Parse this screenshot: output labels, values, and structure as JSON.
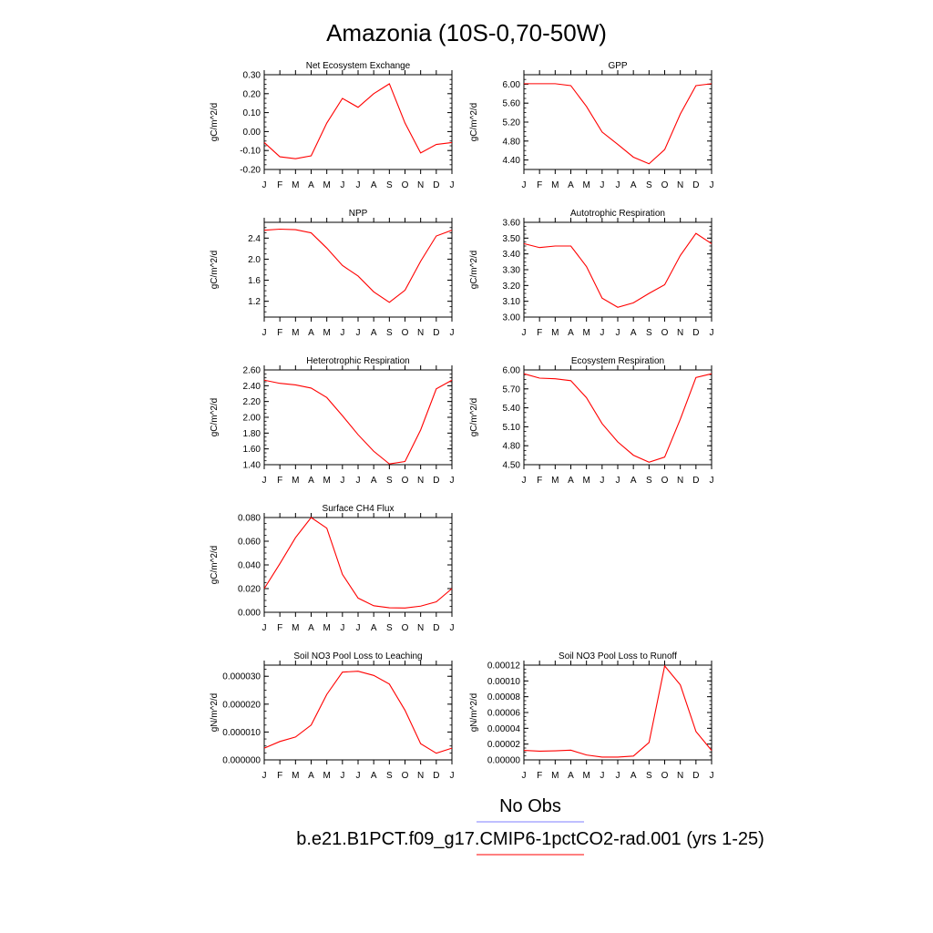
{
  "title": "Amazonia (10S-0,70-50W)",
  "legend": {
    "entries": [
      {
        "label": "No Obs",
        "color": "#7f7fff"
      },
      {
        "label": "b.e21.B1PCT.f09_g17.CMIP6-1pctCO2-rad.001 (yrs 1-25)",
        "color": "#ff0000"
      }
    ]
  },
  "chart_data": [
    {
      "type": "line",
      "title": "Net Ecosystem Exchange",
      "ylabel": "gC/m^2/d",
      "categories": [
        "J",
        "F",
        "M",
        "A",
        "M",
        "J",
        "J",
        "A",
        "S",
        "O",
        "N",
        "D",
        "J"
      ],
      "ylim": [
        -0.2,
        0.3
      ],
      "yticks": [
        -0.2,
        -0.1,
        0.0,
        0.1,
        0.2,
        0.3
      ],
      "ytick_labels": [
        "-0.20",
        "-0.10",
        "0.00",
        "0.10",
        "0.20",
        "0.30"
      ],
      "series": [
        {
          "color": "#ff0000",
          "values": [
            -0.058,
            -0.133,
            -0.143,
            -0.128,
            0.045,
            0.175,
            0.128,
            0.2,
            0.252,
            0.045,
            -0.113,
            -0.068,
            -0.058
          ]
        }
      ]
    },
    {
      "type": "line",
      "title": "GPP",
      "ylabel": "gC/m^2/d",
      "categories": [
        "J",
        "F",
        "M",
        "A",
        "M",
        "J",
        "J",
        "A",
        "S",
        "O",
        "N",
        "D",
        "J"
      ],
      "ylim": [
        4.2,
        6.2
      ],
      "yticks": [
        4.4,
        4.8,
        5.2,
        5.6,
        6.0
      ],
      "ytick_labels": [
        "4.40",
        "4.80",
        "5.20",
        "5.60",
        "6.00"
      ],
      "series": [
        {
          "color": "#ff0000",
          "values": [
            6.01,
            6.01,
            6.01,
            5.97,
            5.53,
            4.99,
            4.73,
            4.46,
            4.32,
            4.62,
            5.37,
            5.97,
            6.01
          ]
        }
      ]
    },
    {
      "type": "line",
      "title": "NPP",
      "ylabel": "gC/m^2/d",
      "categories": [
        "J",
        "F",
        "M",
        "A",
        "M",
        "J",
        "J",
        "A",
        "S",
        "O",
        "N",
        "D",
        "J"
      ],
      "ylim": [
        0.9,
        2.7
      ],
      "yticks": [
        1.2,
        1.6,
        2.0,
        2.4
      ],
      "ytick_labels": [
        "1.2",
        "1.6",
        "2.0",
        "2.4"
      ],
      "series": [
        {
          "color": "#ff0000",
          "values": [
            2.55,
            2.57,
            2.56,
            2.5,
            2.21,
            1.88,
            1.68,
            1.38,
            1.18,
            1.41,
            1.96,
            2.44,
            2.55
          ]
        }
      ]
    },
    {
      "type": "line",
      "title": "Autotrophic Respiration",
      "ylabel": "gC/m^2/d",
      "categories": [
        "J",
        "F",
        "M",
        "A",
        "M",
        "J",
        "J",
        "A",
        "S",
        "O",
        "N",
        "D",
        "J"
      ],
      "ylim": [
        3.0,
        3.6
      ],
      "yticks": [
        3.0,
        3.1,
        3.2,
        3.3,
        3.4,
        3.5,
        3.6
      ],
      "ytick_labels": [
        "3.00",
        "3.10",
        "3.20",
        "3.30",
        "3.40",
        "3.50",
        "3.60"
      ],
      "series": [
        {
          "color": "#ff0000",
          "values": [
            3.465,
            3.44,
            3.45,
            3.45,
            3.32,
            3.12,
            3.062,
            3.09,
            3.15,
            3.205,
            3.39,
            3.53,
            3.465
          ]
        }
      ]
    },
    {
      "type": "line",
      "title": "Heterotrophic Respiration",
      "ylabel": "gC/m^2/d",
      "categories": [
        "J",
        "F",
        "M",
        "A",
        "M",
        "J",
        "J",
        "A",
        "S",
        "O",
        "N",
        "D",
        "J"
      ],
      "ylim": [
        1.4,
        2.6
      ],
      "yticks": [
        1.4,
        1.6,
        1.8,
        2.0,
        2.2,
        2.4,
        2.6
      ],
      "ytick_labels": [
        "1.40",
        "1.60",
        "1.80",
        "2.00",
        "2.20",
        "2.40",
        "2.60"
      ],
      "series": [
        {
          "color": "#ff0000",
          "values": [
            2.47,
            2.43,
            2.41,
            2.37,
            2.25,
            2.02,
            1.78,
            1.57,
            1.41,
            1.44,
            1.84,
            2.36,
            2.47
          ]
        }
      ]
    },
    {
      "type": "line",
      "title": "Ecosystem Respiration",
      "ylabel": "gC/m^2/d",
      "categories": [
        "J",
        "F",
        "M",
        "A",
        "M",
        "J",
        "J",
        "A",
        "S",
        "O",
        "N",
        "D",
        "J"
      ],
      "ylim": [
        4.5,
        6.0
      ],
      "yticks": [
        4.5,
        4.8,
        5.1,
        5.4,
        5.7,
        6.0
      ],
      "ytick_labels": [
        "4.50",
        "4.80",
        "5.10",
        "5.40",
        "5.70",
        "6.00"
      ],
      "series": [
        {
          "color": "#ff0000",
          "values": [
            5.94,
            5.87,
            5.86,
            5.83,
            5.56,
            5.15,
            4.86,
            4.65,
            4.54,
            4.62,
            5.22,
            5.88,
            5.94
          ]
        }
      ]
    },
    {
      "type": "line",
      "title": "Surface CH4 Flux",
      "ylabel": "gC/m^2/d",
      "categories": [
        "J",
        "F",
        "M",
        "A",
        "M",
        "J",
        "J",
        "A",
        "S",
        "O",
        "N",
        "D",
        "J"
      ],
      "ylim": [
        0.0,
        0.08
      ],
      "yticks": [
        0.0,
        0.02,
        0.04,
        0.06,
        0.08
      ],
      "ytick_labels": [
        "0.000",
        "0.020",
        "0.040",
        "0.060",
        "0.080"
      ],
      "series": [
        {
          "color": "#ff0000",
          "values": [
            0.02,
            0.041,
            0.063,
            0.08,
            0.071,
            0.032,
            0.012,
            0.0055,
            0.0038,
            0.0036,
            0.0052,
            0.0088,
            0.02
          ]
        }
      ]
    },
    {
      "type": "line",
      "title": "Soil NO3 Pool Loss to Leaching",
      "ylabel": "gN/m^2/d",
      "categories": [
        "J",
        "F",
        "M",
        "A",
        "M",
        "J",
        "J",
        "A",
        "S",
        "O",
        "N",
        "D",
        "J"
      ],
      "ylim": [
        0.0,
        3.4e-05
      ],
      "yticks": [
        0.0,
        1e-05,
        2e-05,
        3e-05
      ],
      "ytick_labels": [
        "0.000000",
        "0.000010",
        "0.000020",
        "0.000030"
      ],
      "series": [
        {
          "color": "#ff0000",
          "values": [
            4.2e-06,
            6.6e-06,
            8.2e-06,
            1.25e-05,
            2.35e-05,
            3.15e-05,
            3.18e-05,
            3.03e-05,
            2.72e-05,
            1.78e-05,
            5.8e-06,
            2.4e-06,
            4.2e-06
          ]
        }
      ]
    },
    {
      "type": "line",
      "title": "Soil NO3 Pool Loss to Runoff",
      "ylabel": "gN/m^2/d",
      "categories": [
        "J",
        "F",
        "M",
        "A",
        "M",
        "J",
        "J",
        "A",
        "S",
        "O",
        "N",
        "D",
        "J"
      ],
      "ylim": [
        0.0,
        0.00012
      ],
      "yticks": [
        0.0,
        2e-05,
        4e-05,
        6e-05,
        8e-05,
        0.0001,
        0.00012
      ],
      "ytick_labels": [
        "0.00000",
        "0.00002",
        "0.00004",
        "0.00006",
        "0.00008",
        "0.00010",
        "0.00012"
      ],
      "series": [
        {
          "color": "#ff0000",
          "values": [
            1.2e-05,
            1.1e-05,
            1.15e-05,
            1.23e-05,
            6.2e-06,
            3.5e-06,
            3.5e-06,
            4.8e-06,
            2.2e-05,
            0.000119,
            9.5e-05,
            3.6e-05,
            1.2e-05
          ]
        }
      ]
    }
  ]
}
